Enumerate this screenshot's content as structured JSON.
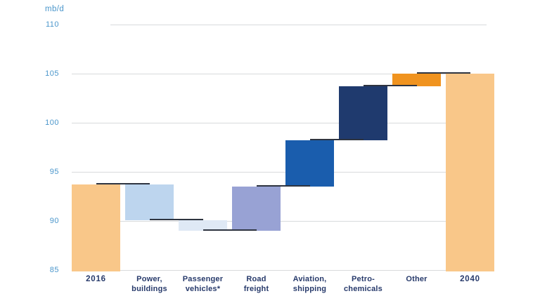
{
  "chart": {
    "unit_label": "mb/d",
    "colors": {
      "endpoint_bar": "#f9c789",
      "other_bar": "#f0931f",
      "petrochemicals_bar": "#1f3a6e",
      "aviation_bar": "#1a5dad",
      "road_freight_bar": "#98a2d4",
      "power_buildings_bar": "#bdd5ee",
      "passenger_vehicles_bar": "#dfe9f5",
      "tick_label": "#4a96cb",
      "category_label": "#273a6b",
      "gridline": "#d8dadc",
      "connector": "#2e3440"
    }
  },
  "chart_data": {
    "type": "bar",
    "subtype": "waterfall",
    "title": "",
    "xlabel": "",
    "ylabel": "mb/d",
    "ylim": [
      85,
      110
    ],
    "y_ticks": [
      110,
      105,
      100,
      95,
      90,
      85
    ],
    "grid": true,
    "categories": [
      "2016",
      "Power, buildings",
      "Passenger vehicles*",
      "Road freight",
      "Aviation, shipping",
      "Petro-chemicals",
      "Other",
      "2040"
    ],
    "bars": [
      {
        "name": "2016",
        "category_line1": "2016",
        "category_line2": "",
        "start": 85,
        "end": 93.7,
        "value": 93.7,
        "role": "total",
        "color_key": "endpoint_bar",
        "bold_label": true
      },
      {
        "name": "power-buildings",
        "category_line1": "Power,",
        "category_line2": "buildings",
        "start": 93.7,
        "end": 90.1,
        "value": -3.6,
        "role": "decrease",
        "color_key": "power_buildings_bar",
        "bold_label": false
      },
      {
        "name": "passenger-vehicles",
        "category_line1": "Passenger",
        "category_line2": "vehicles*",
        "start": 90.1,
        "end": 89.0,
        "value": -1.1,
        "role": "decrease",
        "color_key": "passenger_vehicles_bar",
        "bold_label": false
      },
      {
        "name": "road-freight",
        "category_line1": "Road",
        "category_line2": "freight",
        "start": 89.0,
        "end": 93.5,
        "value": 4.5,
        "role": "increase",
        "color_key": "road_freight_bar",
        "bold_label": false
      },
      {
        "name": "aviation-shipping",
        "category_line1": "Aviation,",
        "category_line2": "shipping",
        "start": 93.5,
        "end": 98.2,
        "value": 4.7,
        "role": "increase",
        "color_key": "aviation_bar",
        "bold_label": false
      },
      {
        "name": "petro-chemicals",
        "category_line1": "Petro-",
        "category_line2": "chemicals",
        "start": 98.2,
        "end": 103.7,
        "value": 5.5,
        "role": "increase",
        "color_key": "petrochemicals_bar",
        "bold_label": false
      },
      {
        "name": "other",
        "category_line1": "Other",
        "category_line2": "",
        "start": 103.7,
        "end": 105.0,
        "value": 1.3,
        "role": "increase",
        "color_key": "other_bar",
        "bold_label": false
      },
      {
        "name": "2040",
        "category_line1": "2040",
        "category_line2": "",
        "start": 85,
        "end": 105.0,
        "value": 105.0,
        "role": "total",
        "color_key": "endpoint_bar",
        "bold_label": true
      }
    ]
  }
}
